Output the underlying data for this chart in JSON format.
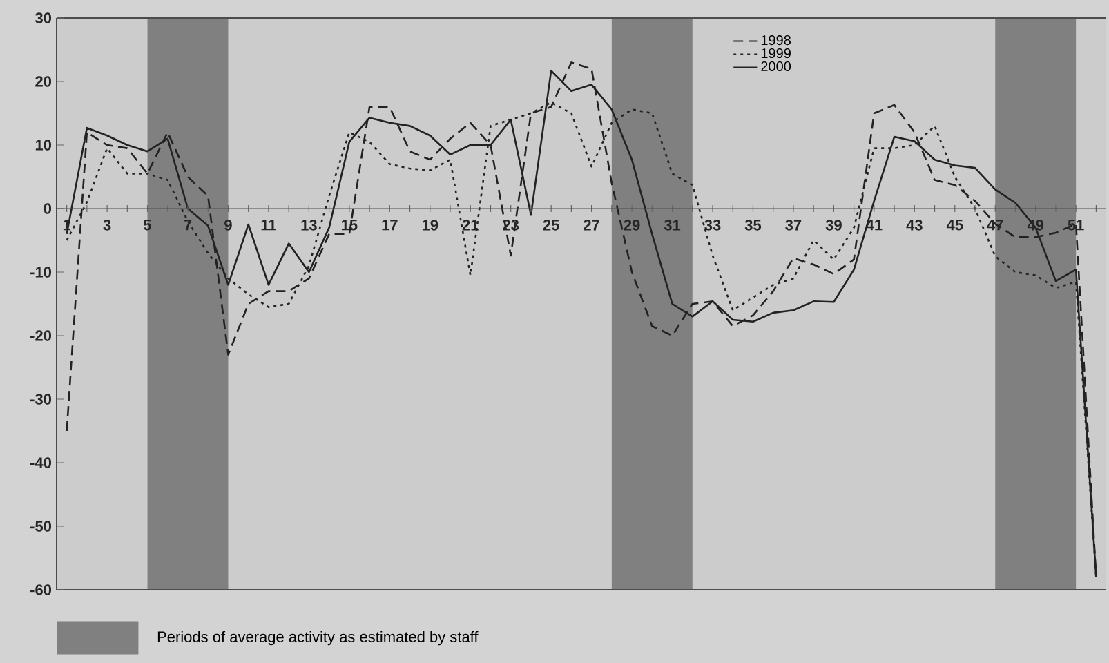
{
  "chart_data": {
    "type": "line",
    "x": [
      1,
      2,
      3,
      4,
      5,
      6,
      7,
      8,
      9,
      10,
      11,
      12,
      13,
      14,
      15,
      16,
      17,
      18,
      19,
      20,
      21,
      22,
      23,
      24,
      25,
      26,
      27,
      28,
      29,
      30,
      31,
      32,
      33,
      34,
      35,
      36,
      37,
      38,
      39,
      40,
      41,
      42,
      43,
      44,
      45,
      46,
      47,
      48,
      49,
      50,
      51,
      52
    ],
    "series": [
      {
        "name": "1998",
        "color": "#222222",
        "line_style": "dashed",
        "values": [
          -35,
          12,
          10,
          9.5,
          5.5,
          12,
          5,
          2,
          -23,
          -15,
          -13,
          -13,
          -11,
          -4,
          -4,
          16,
          16,
          9,
          7.7,
          11,
          13.5,
          10,
          -7.4,
          15,
          16,
          23,
          22,
          4,
          -10,
          -18.5,
          -20,
          -15,
          -14.6,
          -18.5,
          -16.8,
          -13,
          -7.8,
          -8.8,
          -10.3,
          -8,
          15,
          16.3,
          12,
          4.5,
          3.7,
          1.2,
          -2.4,
          -4.5,
          -4.5,
          -3.8,
          -2.4,
          -58
        ]
      },
      {
        "name": "1999",
        "color": "#222222",
        "line_style": "dotted",
        "values": [
          -5,
          1,
          9.5,
          5.5,
          5.5,
          4.5,
          -2,
          -7,
          -11,
          -13.5,
          -15.5,
          -15,
          -9,
          2,
          12,
          10.5,
          7,
          6.3,
          6,
          7.7,
          -10.5,
          13,
          14,
          15,
          16.7,
          15,
          6.6,
          13.5,
          15.6,
          15,
          5.5,
          3.7,
          -7.4,
          -16,
          -14,
          -12,
          -11,
          -5,
          -8,
          -3,
          9.5,
          9.5,
          10,
          13,
          5,
          0,
          -7.5,
          -10,
          -10.5,
          -12.5,
          -11.5,
          -58
        ]
      },
      {
        "name": "2000",
        "color": "#222222",
        "line_style": "solid",
        "values": [
          -4,
          12.7,
          11.5,
          10,
          9,
          11,
          0,
          -2.7,
          -12,
          -2.5,
          -12,
          -5.5,
          -10,
          -3,
          10.5,
          14.3,
          13.5,
          13,
          11.5,
          8.5,
          10,
          10,
          14,
          -1,
          21.7,
          18.5,
          19.5,
          15.6,
          7.7,
          -4,
          -15,
          -17,
          -14.6,
          -17.5,
          -17.8,
          -16.4,
          -16,
          -14.6,
          -14.7,
          -9.6,
          1.2,
          11.3,
          10.6,
          7.7,
          6.8,
          6.4,
          3,
          0.9,
          -3,
          -11.4,
          -9.6,
          -58
        ]
      }
    ],
    "xlim": [
      0.5,
      52.5
    ],
    "xticks": [
      1,
      {
        "value": 2,
        "label": null
      },
      3,
      {
        "value": 4,
        "label": null
      },
      5,
      {
        "value": 6,
        "label": null
      },
      7,
      {
        "value": 8,
        "label": null
      },
      9,
      {
        "value": 10,
        "label": null
      },
      11,
      {
        "value": 12,
        "label": null
      },
      13,
      {
        "value": 14,
        "label": null
      },
      15,
      {
        "value": 16,
        "label": null
      },
      17,
      {
        "value": 18,
        "label": null
      },
      19,
      {
        "value": 20,
        "label": null
      },
      21,
      {
        "value": 22,
        "label": null
      },
      23,
      {
        "value": 24,
        "label": null
      },
      25,
      {
        "value": 26,
        "label": null
      },
      27,
      {
        "value": 28,
        "label": null
      },
      29,
      {
        "value": 30,
        "label": null
      },
      31,
      {
        "value": 32,
        "label": null
      },
      33,
      {
        "value": 34,
        "label": null
      },
      35,
      {
        "value": 36,
        "label": null
      },
      37,
      {
        "value": 38,
        "label": null
      },
      39,
      {
        "value": 40,
        "label": null
      },
      41,
      {
        "value": 42,
        "label": null
      },
      43,
      {
        "value": 44,
        "label": null
      },
      45,
      {
        "value": 46,
        "label": null
      },
      47,
      {
        "value": 48,
        "label": null
      },
      49,
      {
        "value": 50,
        "label": null
      },
      51,
      {
        "value": 52,
        "label": null
      }
    ],
    "ylim": [
      -60,
      30
    ],
    "yticks": [
      -60,
      -50,
      -40,
      -30,
      -20,
      -10,
      0,
      10,
      20,
      30
    ],
    "bands": [
      {
        "axis": "x",
        "from": 5,
        "to": 9,
        "color": "#808080",
        "label": "Periods of average activity as estimated by staff"
      },
      {
        "axis": "x",
        "from": 28,
        "to": 32,
        "color": "#808080"
      },
      {
        "axis": "x",
        "from": 47,
        "to": 51,
        "color": "#808080"
      }
    ],
    "legend": "top right",
    "marker": "none",
    "grid": false
  }
}
